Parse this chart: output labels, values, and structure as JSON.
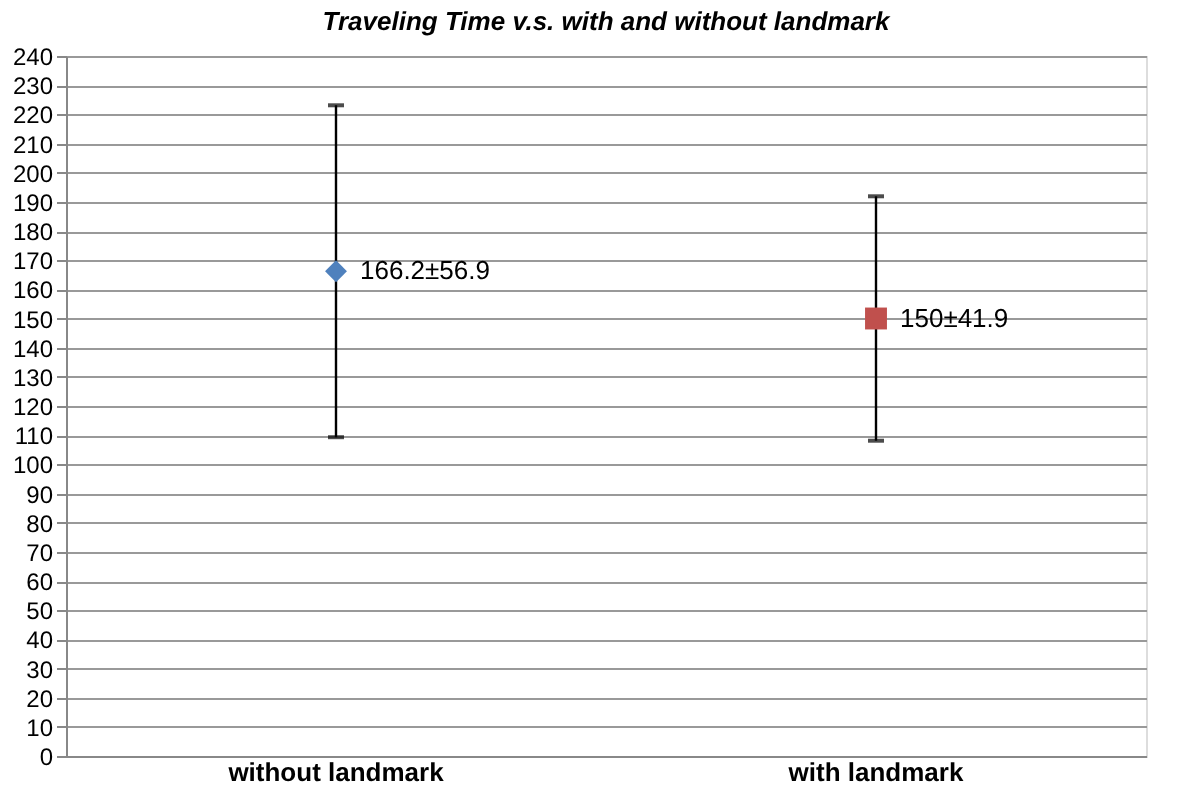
{
  "chart_data": {
    "type": "scatter",
    "title": "Traveling Time v.s. with and without landmark",
    "categories": [
      "without landmark",
      "with landmark"
    ],
    "series": [
      {
        "color": "#4f81bd",
        "marker": "diamond",
        "x": [
          "without landmark"
        ],
        "values": [
          166.2
        ],
        "errors": [
          56.9
        ],
        "value_labels": [
          "166.2±56.9"
        ]
      },
      {
        "color": "#c0504d",
        "marker": "square",
        "x": [
          "with landmark"
        ],
        "values": [
          150
        ],
        "errors": [
          41.9
        ],
        "value_labels": [
          "150±41.9"
        ]
      }
    ],
    "ylim": [
      0,
      240
    ],
    "yticks": [
      0,
      10,
      20,
      30,
      40,
      50,
      60,
      70,
      80,
      90,
      100,
      110,
      120,
      130,
      140,
      150,
      160,
      170,
      180,
      190,
      200,
      210,
      220,
      230,
      240
    ],
    "grid": "y"
  }
}
